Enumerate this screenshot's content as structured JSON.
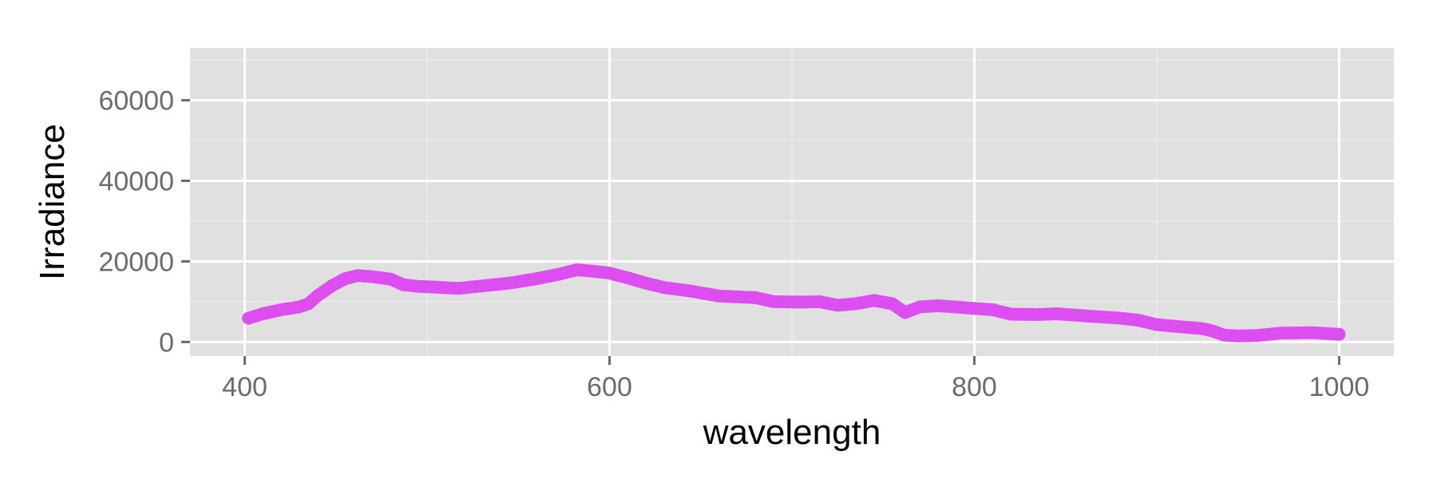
{
  "chart_data": {
    "type": "scatter",
    "title": "",
    "xlabel": "wavelength",
    "ylabel": "Irradiance",
    "xlim": [
      370,
      1030
    ],
    "ylim": [
      -3500,
      73000
    ],
    "x_ticks": [
      400,
      600,
      800,
      1000
    ],
    "y_ticks": [
      0,
      20000,
      40000,
      60000
    ],
    "grid": true,
    "legend": "none",
    "colors": {
      "panel": "#e0e0e0",
      "grid_major": "#ffffff",
      "grid_minor": "#ececec",
      "points": "#dd4ef0",
      "tick_text": "#6b6b6b",
      "tick_mark": "#6b6b6b"
    },
    "series": [
      {
        "points": [
          [
            402,
            5900
          ],
          [
            410,
            7000
          ],
          [
            420,
            8000
          ],
          [
            430,
            8700
          ],
          [
            435,
            9500
          ],
          [
            440,
            11500
          ],
          [
            448,
            14000
          ],
          [
            455,
            15700
          ],
          [
            462,
            16500
          ],
          [
            470,
            16200
          ],
          [
            480,
            15600
          ],
          [
            487,
            14200
          ],
          [
            495,
            13800
          ],
          [
            505,
            13600
          ],
          [
            517,
            13300
          ],
          [
            530,
            13900
          ],
          [
            545,
            14600
          ],
          [
            560,
            15700
          ],
          [
            572,
            16800
          ],
          [
            582,
            17900
          ],
          [
            590,
            17600
          ],
          [
            600,
            17100
          ],
          [
            610,
            15900
          ],
          [
            620,
            14600
          ],
          [
            630,
            13500
          ],
          [
            645,
            12600
          ],
          [
            660,
            11400
          ],
          [
            680,
            11000
          ],
          [
            690,
            10000
          ],
          [
            705,
            9900
          ],
          [
            715,
            10000
          ],
          [
            725,
            9100
          ],
          [
            735,
            9500
          ],
          [
            745,
            10300
          ],
          [
            755,
            9500
          ],
          [
            762,
            7300
          ],
          [
            770,
            8700
          ],
          [
            780,
            9000
          ],
          [
            795,
            8500
          ],
          [
            810,
            8000
          ],
          [
            820,
            6900
          ],
          [
            835,
            6800
          ],
          [
            845,
            7000
          ],
          [
            860,
            6500
          ],
          [
            880,
            5900
          ],
          [
            890,
            5400
          ],
          [
            900,
            4300
          ],
          [
            915,
            3700
          ],
          [
            925,
            3300
          ],
          [
            930,
            2800
          ],
          [
            937,
            1700
          ],
          [
            945,
            1500
          ],
          [
            955,
            1600
          ],
          [
            968,
            2200
          ],
          [
            985,
            2300
          ],
          [
            1000,
            1900
          ]
        ]
      }
    ]
  }
}
